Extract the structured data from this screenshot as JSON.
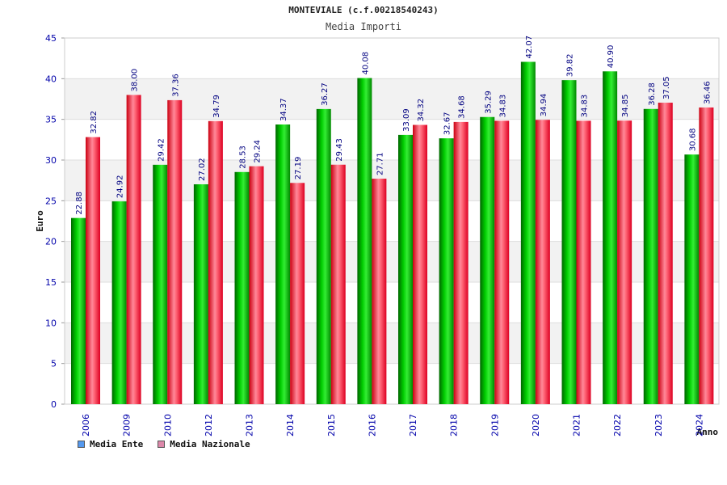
{
  "title": "MONTEVIALE (c.f.00218540243)",
  "subtitle": "Media Importi",
  "legend": {
    "series1": "Media Ente",
    "series2": "Media Nazionale",
    "color1": "#5599ee",
    "color2": "#dd88aa"
  },
  "chart_data": {
    "type": "bar",
    "title": "Media Importi",
    "xlabel": "Anno",
    "ylabel": "Euro",
    "ylim": [
      0,
      45
    ],
    "yticks": [
      0,
      5,
      10,
      15,
      20,
      25,
      30,
      35,
      40,
      45
    ],
    "categories": [
      "2006",
      "2009",
      "2010",
      "2012",
      "2013",
      "2014",
      "2015",
      "2016",
      "2017",
      "2018",
      "2019",
      "2020",
      "2021",
      "2022",
      "2023",
      "2024"
    ],
    "series": [
      {
        "name": "Media Ente",
        "color": "#00aa00",
        "values": [
          22.88,
          24.92,
          29.42,
          27.02,
          28.53,
          34.37,
          36.27,
          40.08,
          33.09,
          32.67,
          35.29,
          42.07,
          39.82,
          40.9,
          36.28,
          30.68
        ]
      },
      {
        "name": "Media Nazionale",
        "color": "#ee2233",
        "values": [
          32.82,
          38.0,
          37.36,
          34.79,
          29.24,
          27.19,
          29.43,
          27.71,
          34.32,
          34.68,
          34.83,
          34.94,
          34.83,
          34.85,
          37.05,
          36.46
        ]
      }
    ]
  }
}
